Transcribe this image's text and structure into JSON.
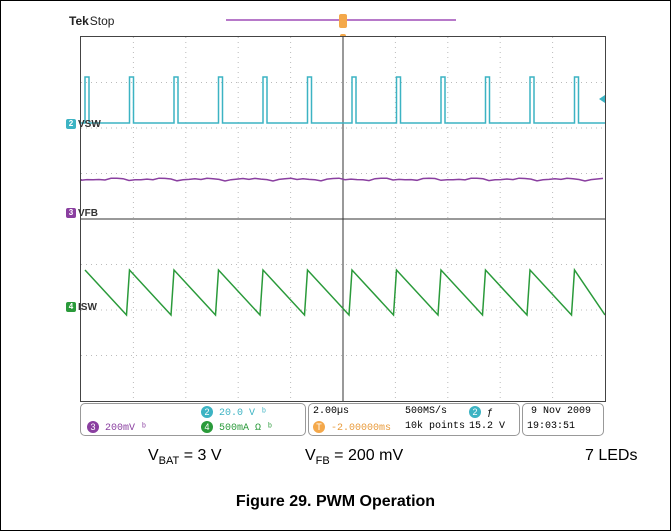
{
  "scope": {
    "brand": "Tek",
    "state": "Stop",
    "channels": {
      "ch2": {
        "num": "2",
        "label": "VSW",
        "scale": "20.0 V",
        "color": "#3cb3c3"
      },
      "ch3": {
        "num": "3",
        "label": "VFB",
        "scale": "200mV",
        "color": "#8a3fa0"
      },
      "ch4": {
        "num": "4",
        "label": "ISW",
        "scale": "500mA Ω",
        "color": "#2a9a3a"
      }
    },
    "ch2_bw": "ᵇ",
    "ch3_bw": "ᵇ",
    "ch4_bw": "ᵇ",
    "timebase": "2.00µs",
    "sample_rate": "500MS/s",
    "trigger_pos": "-2.00000ms",
    "record_length": "10k points",
    "trigger_ch": "2",
    "trigger_slope": "ƒ",
    "trigger_level": "15.2 V",
    "date": "9 Nov 2009",
    "time": "19:03:51"
  },
  "caption": {
    "vbat_main": "V",
    "vbat_sub": "BAT",
    "vbat_rest": " = 3 V",
    "vfb_main": "V",
    "vfb_sub": "FB",
    "vfb_rest": " = 200 mV",
    "leds": "7 LEDs"
  },
  "figure_title": "Figure 29. PWM Operation"
}
